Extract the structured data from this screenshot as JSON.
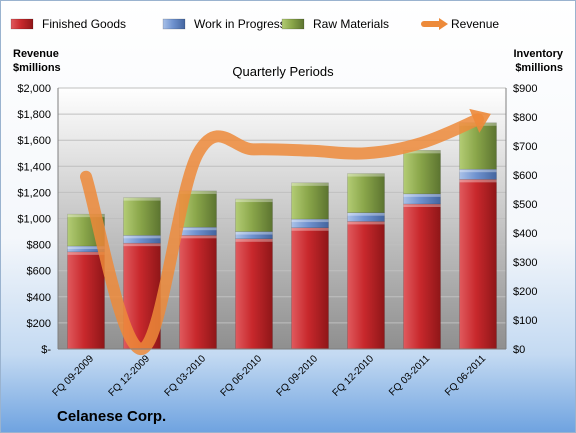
{
  "chart_data": {
    "type": "bar",
    "stacked": true,
    "title": "Quarterly Periods",
    "y_left_label": [
      "Revenue",
      "$millions"
    ],
    "y_right_label": [
      "Inventory",
      "$millions"
    ],
    "company": "Celanese Corp.",
    "categories": [
      "FQ 09-2009",
      "FQ 12-2009",
      "FQ 03-2010",
      "FQ 06-2010",
      "FQ 09-2010",
      "FQ 12-2010",
      "FQ 03-2011",
      "FQ 06-2011"
    ],
    "y_left_ticks": [
      "$-",
      "$200",
      "$400",
      "$600",
      "$800",
      "$1,000",
      "$1,200",
      "$1,400",
      "$1,600",
      "$1,800",
      "$2,000"
    ],
    "y_right_ticks": [
      "$0",
      "$100",
      "$200",
      "$300",
      "$400",
      "$500",
      "$600",
      "$700",
      "$800",
      "$900"
    ],
    "y_left_range": [
      0,
      2000
    ],
    "y_right_range": [
      0,
      900
    ],
    "legend_position": "top",
    "series": [
      {
        "name": "Finished Goods",
        "axis": "right",
        "color": "#c8282c",
        "values": [
          335,
          365,
          392,
          380,
          418,
          440,
          500,
          585
        ]
      },
      {
        "name": "Work in Progress",
        "axis": "right",
        "color": "#6f92cf",
        "values": [
          20,
          27,
          28,
          25,
          30,
          30,
          35,
          35
        ]
      },
      {
        "name": "Raw Materials",
        "axis": "right",
        "color": "#8aa64a",
        "values": [
          110,
          130,
          125,
          112,
          125,
          135,
          150,
          160
        ]
      },
      {
        "name": "Revenue",
        "axis": "left",
        "type": "line",
        "color": "#ed8a3a",
        "values": [
          1320,
          0,
          1500,
          1530,
          1520,
          1500,
          1580,
          1760
        ]
      }
    ]
  }
}
